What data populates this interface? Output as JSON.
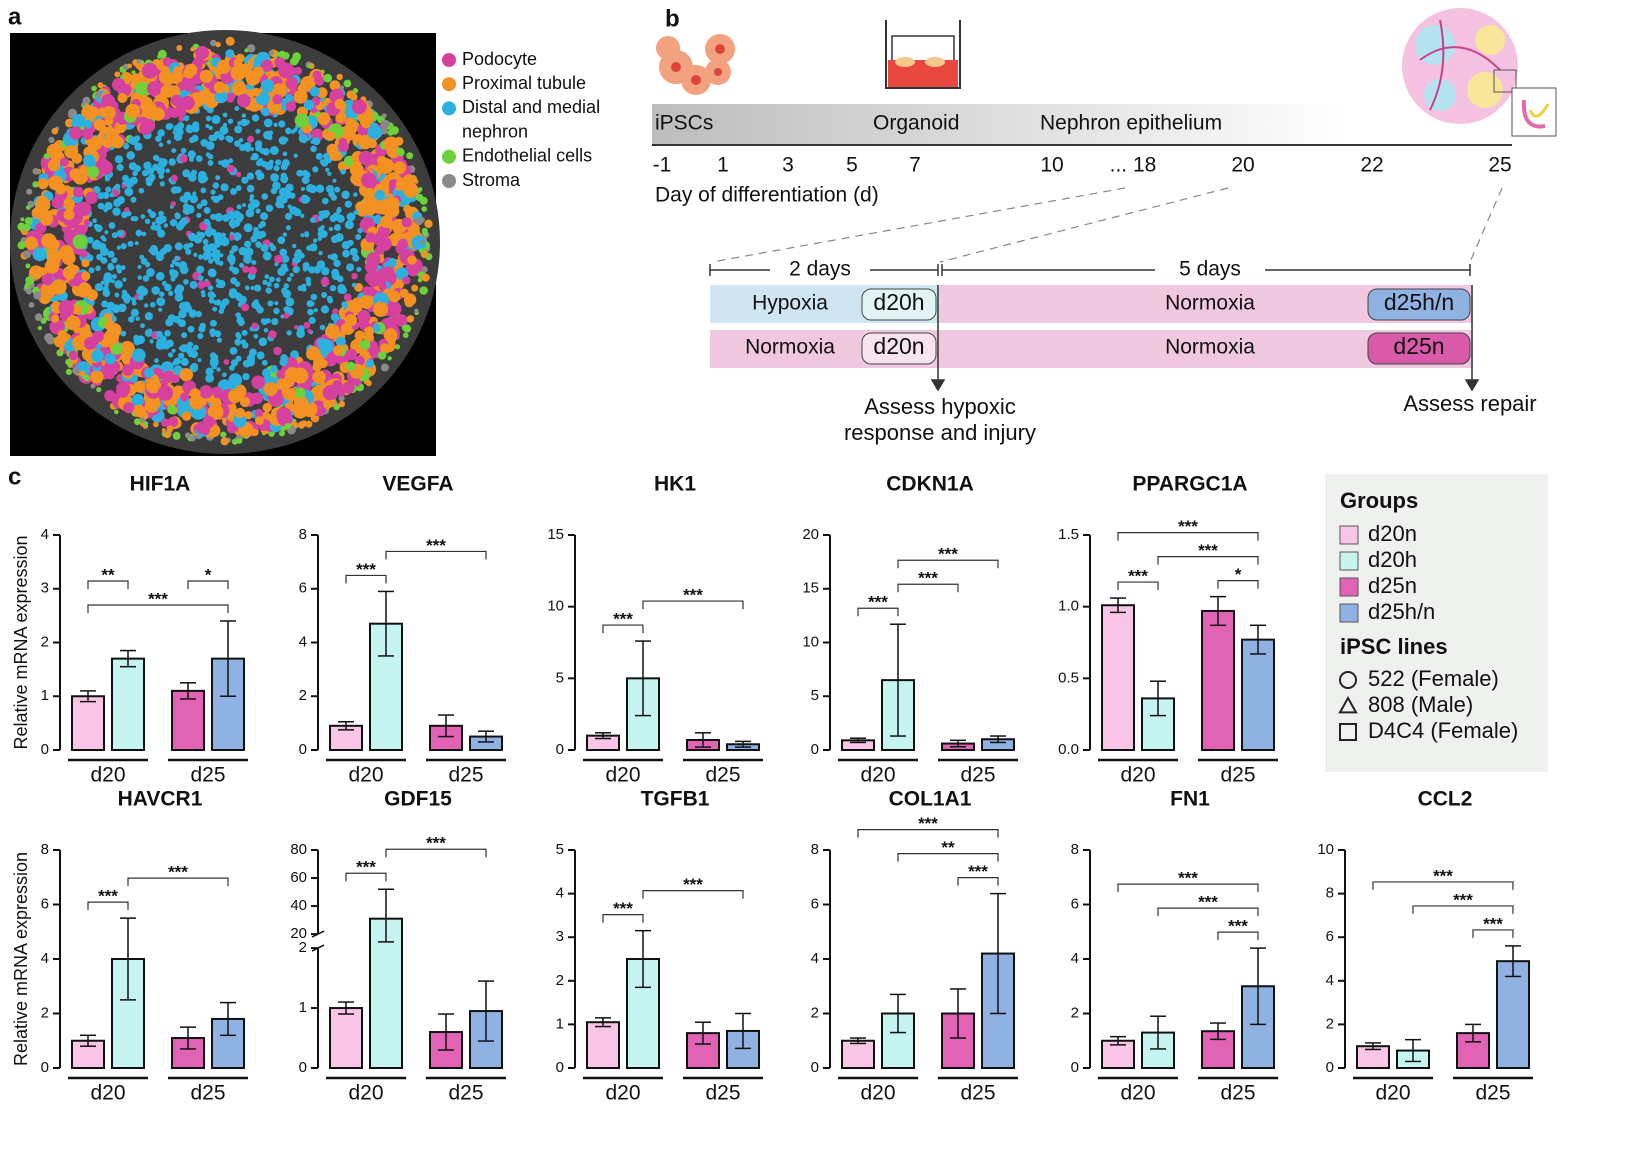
{
  "panel_labels": [
    "a",
    "b",
    "c"
  ],
  "panel_a": {
    "legend": [
      {
        "name": "Podocyte",
        "color": "#d6409f"
      },
      {
        "name": "Proximal tubule",
        "color": "#f39222"
      },
      {
        "name": "Distal and medial",
        "color": "#2cb0e0"
      },
      {
        "name": "nephron",
        "color": null
      },
      {
        "name": "Endothelial cells",
        "color": "#6dd13b"
      },
      {
        "name": "Stroma",
        "color": "#8a8a8a"
      }
    ]
  },
  "panel_b": {
    "stages": [
      "iPSCs",
      "Organoid",
      "Nephron epithelium"
    ],
    "days": [
      "-1",
      "1",
      "3",
      "5",
      "7",
      "10",
      "... 18",
      "20",
      "22",
      "25"
    ],
    "axis_label": "Day of differentiation (d)",
    "durations": [
      "2 days",
      "5 days"
    ],
    "rows": [
      {
        "first": "Hypoxia",
        "first_tag": "d20h",
        "second": "Normoxia",
        "second_tag": "d25h/n"
      },
      {
        "first": "Normoxia",
        "first_tag": "d20n",
        "second": "Normoxia",
        "second_tag": "d25n"
      }
    ],
    "assess": [
      [
        "Assess hypoxic",
        "response and injury"
      ],
      [
        "Assess repair"
      ]
    ]
  },
  "legend_c": {
    "groups_title": "Groups",
    "groups": [
      {
        "name": "d20n",
        "color": "#f9c6e8"
      },
      {
        "name": "d20h",
        "color": "#c6f5f1"
      },
      {
        "name": "d25n",
        "color": "#e063b4"
      },
      {
        "name": "d25h/n",
        "color": "#8fb2e2"
      }
    ],
    "lines_title": "iPSC lines",
    "lines": [
      {
        "name": "522 (Female)",
        "marker": "circle"
      },
      {
        "name": "808 (Male)",
        "marker": "triangle"
      },
      {
        "name": "D4C4 (Female)",
        "marker": "square"
      }
    ]
  },
  "chart_data": [
    {
      "type": "bar",
      "title": "HIF1A",
      "ylabel": "Relative mRNA expression",
      "values": [
        1.0,
        1.7,
        1.1,
        1.7
      ],
      "errors": [
        0.1,
        0.15,
        0.15,
        0.7
      ],
      "ylim": [
        0,
        4
      ],
      "yticks": [
        0,
        1,
        2,
        3,
        4
      ],
      "group_labels": [
        "d20",
        "d25"
      ],
      "significance": [
        {
          "pair": [
            0,
            3
          ],
          "label": "***"
        },
        {
          "pair": [
            0,
            1
          ],
          "label": "**"
        },
        {
          "pair": [
            2,
            3
          ],
          "label": "*"
        }
      ]
    },
    {
      "type": "bar",
      "title": "VEGFA",
      "values": [
        0.9,
        4.7,
        0.9,
        0.5
      ],
      "errors": [
        0.15,
        1.2,
        0.4,
        0.2
      ],
      "ylim": [
        0,
        8
      ],
      "yticks": [
        0,
        2,
        4,
        6,
        8
      ],
      "group_labels": [
        "d20",
        "d25"
      ],
      "significance": [
        {
          "pair": [
            0,
            1
          ],
          "label": "***"
        },
        {
          "pair": [
            1,
            3
          ],
          "label": "***"
        }
      ]
    },
    {
      "type": "bar",
      "title": "HK1",
      "values": [
        1.0,
        5.0,
        0.7,
        0.4
      ],
      "errors": [
        0.2,
        2.6,
        0.5,
        0.2
      ],
      "ylim": [
        0,
        15
      ],
      "yticks": [
        0,
        5,
        10,
        15
      ],
      "group_labels": [
        "d20",
        "d25"
      ],
      "significance": [
        {
          "pair": [
            0,
            1
          ],
          "label": "***"
        },
        {
          "pair": [
            1,
            3
          ],
          "label": "***"
        }
      ]
    },
    {
      "type": "bar",
      "title": "CDKN1A",
      "values": [
        0.9,
        6.5,
        0.6,
        1.0
      ],
      "errors": [
        0.2,
        5.2,
        0.3,
        0.3
      ],
      "ylim": [
        0,
        20
      ],
      "yticks": [
        0,
        5,
        10,
        15,
        20
      ],
      "group_labels": [
        "d20",
        "d25"
      ],
      "significance": [
        {
          "pair": [
            0,
            1
          ],
          "label": "***"
        },
        {
          "pair": [
            1,
            2
          ],
          "label": "***"
        },
        {
          "pair": [
            1,
            3
          ],
          "label": "***"
        }
      ]
    },
    {
      "type": "bar",
      "title": "PPARGC1A",
      "values": [
        1.01,
        0.36,
        0.97,
        0.77
      ],
      "errors": [
        0.05,
        0.12,
        0.1,
        0.1
      ],
      "ylim": [
        0,
        1.5
      ],
      "yticks": [
        {
          "value": 0,
          "label": "0.0"
        },
        0.5,
        {
          "value": 1,
          "label": "1.0"
        },
        1.5
      ],
      "group_labels": [
        "d20",
        "d25"
      ],
      "significance": [
        {
          "pair": [
            0,
            1
          ],
          "label": "***"
        },
        {
          "pair": [
            2,
            3
          ],
          "label": "*"
        },
        {
          "pair": [
            1,
            3
          ],
          "label": "***"
        },
        {
          "pair": [
            0,
            3
          ],
          "label": "***"
        }
      ]
    },
    {
      "type": "bar",
      "title": "HAVCR1",
      "ylabel": "Relative mRNA expression",
      "values": [
        1.0,
        4.0,
        1.1,
        1.8
      ],
      "errors": [
        0.2,
        1.5,
        0.4,
        0.6
      ],
      "ylim": [
        0,
        8
      ],
      "yticks": [
        0,
        2,
        4,
        6,
        8
      ],
      "group_labels": [
        "d20",
        "d25"
      ],
      "significance": [
        {
          "pair": [
            0,
            1
          ],
          "label": "***"
        },
        {
          "pair": [
            1,
            3
          ],
          "label": "***"
        }
      ]
    },
    {
      "type": "bar",
      "title": "GDF15",
      "values": [
        1.0,
        31,
        0.6,
        0.95
      ],
      "errors": [
        0.1,
        21,
        0.3,
        0.5
      ],
      "ylim": [
        0,
        80
      ],
      "axis_break": [
        2,
        20
      ],
      "yticks": [
        0,
        1,
        2,
        20,
        40,
        60,
        80
      ],
      "group_labels": [
        "d20",
        "d25"
      ],
      "significance": [
        {
          "pair": [
            0,
            1
          ],
          "label": "***"
        },
        {
          "pair": [
            1,
            3
          ],
          "label": "***"
        }
      ]
    },
    {
      "type": "bar",
      "title": "TGFB1",
      "values": [
        1.05,
        2.5,
        0.8,
        0.85
      ],
      "errors": [
        0.1,
        0.65,
        0.25,
        0.4
      ],
      "ylim": [
        0,
        5
      ],
      "yticks": [
        0,
        1,
        2,
        3,
        4,
        5
      ],
      "group_labels": [
        "d20",
        "d25"
      ],
      "significance": [
        {
          "pair": [
            0,
            1
          ],
          "label": "***"
        },
        {
          "pair": [
            1,
            3
          ],
          "label": "***"
        }
      ]
    },
    {
      "type": "bar",
      "title": "COL1A1",
      "values": [
        1.0,
        2.0,
        2.0,
        4.2
      ],
      "errors": [
        0.1,
        0.7,
        0.9,
        2.2
      ],
      "ylim": [
        0,
        8
      ],
      "yticks": [
        0,
        2,
        4,
        6,
        8
      ],
      "group_labels": [
        "d20",
        "d25"
      ],
      "significance": [
        {
          "pair": [
            2,
            3
          ],
          "label": "***"
        },
        {
          "pair": [
            1,
            3
          ],
          "label": "**"
        },
        {
          "pair": [
            0,
            3
          ],
          "label": "***"
        }
      ]
    },
    {
      "type": "bar",
      "title": "FN1",
      "values": [
        1.0,
        1.3,
        1.35,
        3.0
      ],
      "errors": [
        0.15,
        0.6,
        0.3,
        1.4
      ],
      "ylim": [
        0,
        8
      ],
      "yticks": [
        0,
        2,
        4,
        6,
        8
      ],
      "group_labels": [
        "d20",
        "d25"
      ],
      "significance": [
        {
          "pair": [
            2,
            3
          ],
          "label": "***"
        },
        {
          "pair": [
            1,
            3
          ],
          "label": "***"
        },
        {
          "pair": [
            0,
            3
          ],
          "label": "***"
        }
      ]
    },
    {
      "type": "bar",
      "title": "CCL2",
      "values": [
        1.0,
        0.8,
        1.6,
        4.9
      ],
      "errors": [
        0.15,
        0.5,
        0.4,
        0.7
      ],
      "ylim": [
        0,
        10
      ],
      "yticks": [
        0,
        2,
        4,
        6,
        8,
        10
      ],
      "group_labels": [
        "d20",
        "d25"
      ],
      "significance": [
        {
          "pair": [
            2,
            3
          ],
          "label": "***"
        },
        {
          "pair": [
            1,
            3
          ],
          "label": "***"
        },
        {
          "pair": [
            0,
            3
          ],
          "label": "***"
        }
      ]
    }
  ]
}
